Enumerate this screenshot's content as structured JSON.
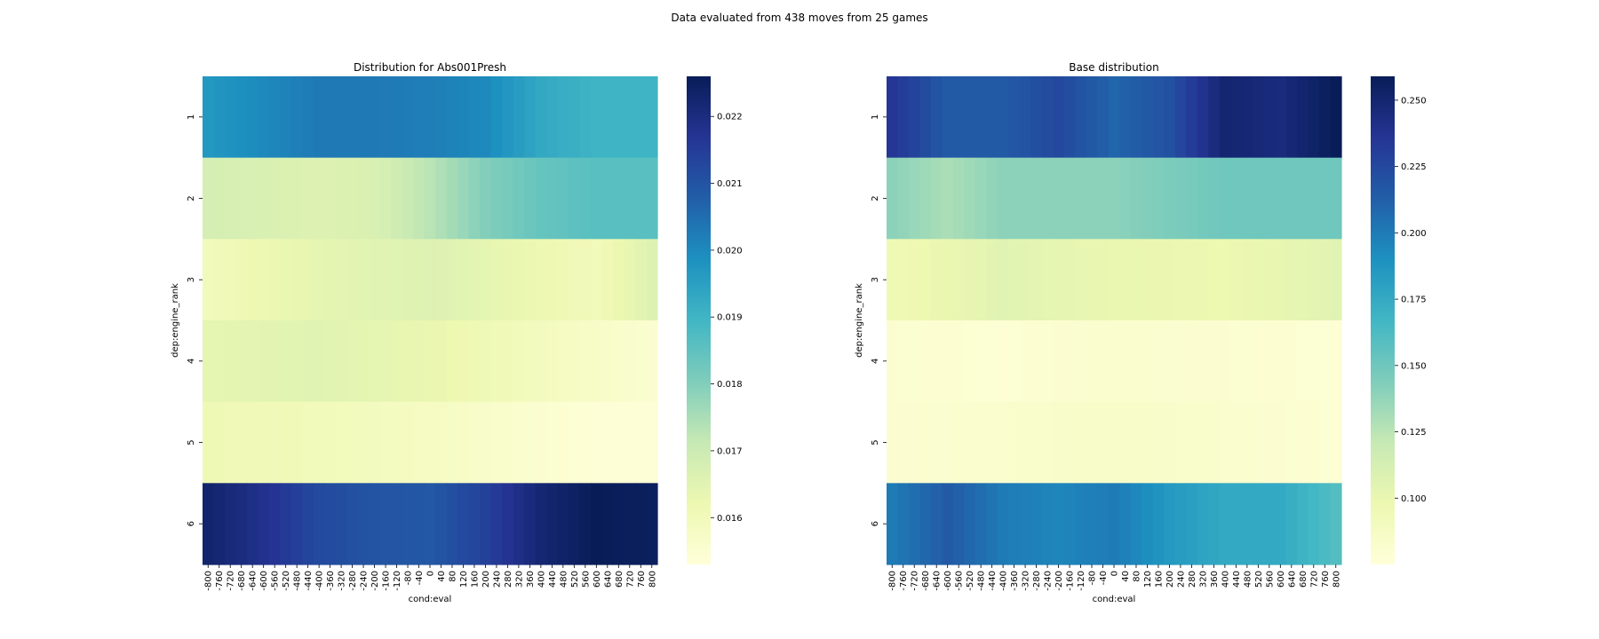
{
  "suptitle": "Data evaluated from 438 moves from 25 games",
  "chart_data": [
    {
      "type": "heatmap",
      "title": "Distribution for Abs001Presh",
      "xlabel": "cond:eval",
      "ylabel": "dep:engine_rank",
      "x_categories": [
        "-800",
        "-760",
        "-720",
        "-680",
        "-640",
        "-600",
        "-560",
        "-520",
        "-480",
        "-440",
        "-400",
        "-360",
        "-320",
        "-280",
        "-240",
        "-200",
        "-160",
        "-120",
        "-80",
        "-40",
        "0",
        "40",
        "80",
        "120",
        "160",
        "200",
        "240",
        "280",
        "320",
        "360",
        "400",
        "440",
        "480",
        "520",
        "560",
        "600",
        "640",
        "680",
        "720",
        "760",
        "800"
      ],
      "y_categories": [
        "1",
        "2",
        "3",
        "4",
        "5",
        "6"
      ],
      "colormap": "YlGnBu",
      "vmin": 0.0153,
      "vmax": 0.0226,
      "colorbar_ticks": [
        0.016,
        0.017,
        0.018,
        0.019,
        0.02,
        0.021,
        0.022
      ],
      "colorbar_tick_labels": [
        "0.016",
        "0.017",
        "0.018",
        "0.019",
        "0.020",
        "0.021",
        "0.022"
      ],
      "rows": [
        {
          "row": "1",
          "knots": [
            [
              -800,
              0.0197
            ],
            [
              -600,
              0.02
            ],
            [
              -400,
              0.0203
            ],
            [
              -200,
              0.0203
            ],
            [
              0,
              0.0202
            ],
            [
              200,
              0.02
            ],
            [
              400,
              0.0193
            ],
            [
              600,
              0.019
            ],
            [
              800,
              0.019
            ]
          ]
        },
        {
          "row": "2",
          "knots": [
            [
              -800,
              0.0168
            ],
            [
              -400,
              0.0166
            ],
            [
              -200,
              0.0167
            ],
            [
              0,
              0.0173
            ],
            [
              200,
              0.018
            ],
            [
              400,
              0.0184
            ],
            [
              600,
              0.0186
            ],
            [
              800,
              0.0186
            ]
          ]
        },
        {
          "row": "3",
          "knots": [
            [
              -800,
              0.016
            ],
            [
              -400,
              0.0164
            ],
            [
              0,
              0.0166
            ],
            [
              400,
              0.0162
            ],
            [
              600,
              0.016
            ],
            [
              800,
              0.0166
            ]
          ]
        },
        {
          "row": "4",
          "knots": [
            [
              -800,
              0.0164
            ],
            [
              -400,
              0.0165
            ],
            [
              0,
              0.0163
            ],
            [
              400,
              0.0159
            ],
            [
              600,
              0.0157
            ],
            [
              800,
              0.0155
            ]
          ]
        },
        {
          "row": "5",
          "knots": [
            [
              -800,
              0.0161
            ],
            [
              -400,
              0.016
            ],
            [
              0,
              0.0158
            ],
            [
              400,
              0.0155
            ],
            [
              600,
              0.0154
            ],
            [
              800,
              0.0154
            ]
          ]
        },
        {
          "row": "6",
          "knots": [
            [
              -800,
              0.0223
            ],
            [
              -600,
              0.0218
            ],
            [
              -400,
              0.0212
            ],
            [
              -200,
              0.021
            ],
            [
              0,
              0.0209
            ],
            [
              200,
              0.0214
            ],
            [
              400,
              0.0222
            ],
            [
              600,
              0.0226
            ],
            [
              800,
              0.0225
            ]
          ]
        }
      ]
    },
    {
      "type": "heatmap",
      "title": "Base distribution",
      "xlabel": "cond:eval",
      "ylabel": "dep:engine_rank",
      "x_categories": [
        "-800",
        "-760",
        "-720",
        "-680",
        "-640",
        "-600",
        "-560",
        "-520",
        "-480",
        "-440",
        "-400",
        "-360",
        "-320",
        "-280",
        "-240",
        "-200",
        "-160",
        "-120",
        "-80",
        "-40",
        "0",
        "40",
        "80",
        "120",
        "160",
        "200",
        "240",
        "280",
        "320",
        "360",
        "400",
        "440",
        "480",
        "520",
        "560",
        "600",
        "640",
        "680",
        "720",
        "760",
        "800"
      ],
      "y_categories": [
        "1",
        "2",
        "3",
        "4",
        "5",
        "6"
      ],
      "colormap": "YlGnBu",
      "vmin": 0.075,
      "vmax": 0.259,
      "colorbar_ticks": [
        0.1,
        0.125,
        0.15,
        0.175,
        0.2,
        0.225,
        0.25
      ],
      "colorbar_tick_labels": [
        "0.100",
        "0.125",
        "0.150",
        "0.175",
        "0.200",
        "0.225",
        "0.250"
      ],
      "rows": [
        {
          "row": "1",
          "knots": [
            [
              -800,
              0.235
            ],
            [
              -600,
              0.215
            ],
            [
              -400,
              0.215
            ],
            [
              -200,
              0.225
            ],
            [
              0,
              0.21
            ],
            [
              200,
              0.22
            ],
            [
              400,
              0.25
            ],
            [
              600,
              0.245
            ],
            [
              800,
              0.259
            ]
          ]
        },
        {
          "row": "2",
          "knots": [
            [
              -800,
              0.14
            ],
            [
              -600,
              0.13
            ],
            [
              -400,
              0.14
            ],
            [
              0,
              0.14
            ],
            [
              400,
              0.15
            ],
            [
              800,
              0.15
            ]
          ]
        },
        {
          "row": "3",
          "knots": [
            [
              -800,
              0.095
            ],
            [
              -400,
              0.105
            ],
            [
              0,
              0.1
            ],
            [
              400,
              0.098
            ],
            [
              800,
              0.105
            ]
          ]
        },
        {
          "row": "4",
          "knots": [
            [
              -800,
              0.08
            ],
            [
              -400,
              0.078
            ],
            [
              0,
              0.082
            ],
            [
              400,
              0.08
            ],
            [
              800,
              0.078
            ]
          ]
        },
        {
          "row": "5",
          "knots": [
            [
              -800,
              0.08
            ],
            [
              -400,
              0.082
            ],
            [
              0,
              0.085
            ],
            [
              400,
              0.082
            ],
            [
              800,
              0.078
            ]
          ]
        },
        {
          "row": "6",
          "knots": [
            [
              -800,
              0.2
            ],
            [
              -600,
              0.215
            ],
            [
              -400,
              0.2
            ],
            [
              -200,
              0.195
            ],
            [
              0,
              0.2
            ],
            [
              200,
              0.185
            ],
            [
              400,
              0.175
            ],
            [
              600,
              0.175
            ],
            [
              800,
              0.16
            ]
          ]
        }
      ]
    }
  ]
}
